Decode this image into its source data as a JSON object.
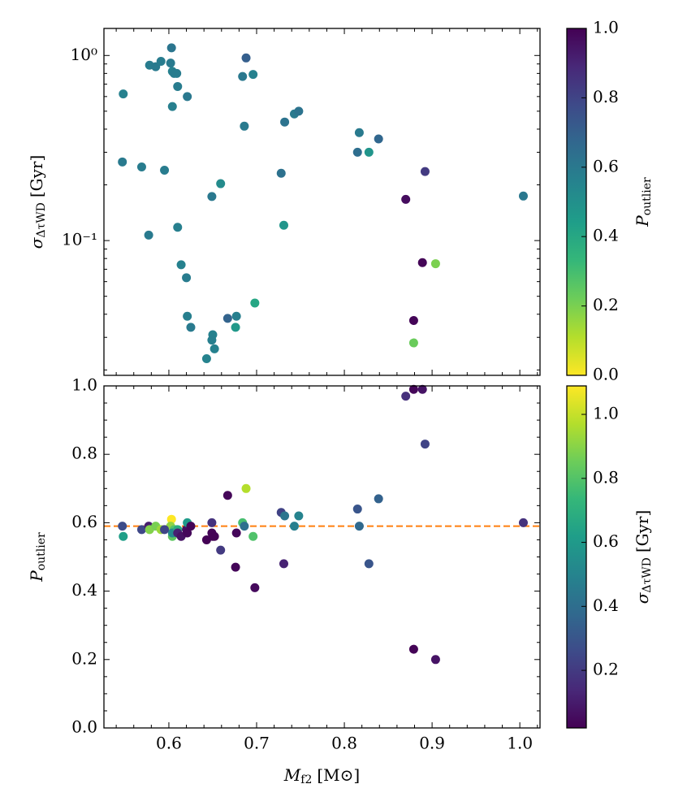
{
  "chart_data": [
    {
      "type": "scatter",
      "ylabel": {
        "symbol": "σ",
        "subscript": "ΔτWD",
        "unit": "[Gyr]"
      },
      "x": [
        0.548,
        0.547,
        0.569,
        0.577,
        0.578,
        0.585,
        0.591,
        0.603,
        0.602,
        0.604,
        0.606,
        0.609,
        0.604,
        0.61,
        0.595,
        0.61,
        0.614,
        0.62,
        0.621,
        0.621,
        0.625,
        0.65,
        0.649,
        0.643,
        0.652,
        0.649,
        0.659,
        0.667,
        0.677,
        0.676,
        0.688,
        0.684,
        0.696,
        0.686,
        0.698,
        0.728,
        0.731,
        0.732,
        0.743,
        0.748,
        0.815,
        0.817,
        0.828,
        0.839,
        0.87,
        0.879,
        0.879,
        0.889,
        0.892,
        0.904,
        1.004
      ],
      "y": [
        0.62,
        0.266,
        0.25,
        0.107,
        0.886,
        0.87,
        0.93,
        1.1,
        0.91,
        0.82,
        0.8,
        0.8,
        0.53,
        0.68,
        0.24,
        0.118,
        0.074,
        0.063,
        0.6,
        0.039,
        0.034,
        0.031,
        0.029,
        0.023,
        0.026,
        0.173,
        0.203,
        0.038,
        0.039,
        0.034,
        0.97,
        0.77,
        0.79,
        0.415,
        0.046,
        0.231,
        0.121,
        0.437,
        0.483,
        0.5,
        0.3,
        0.383,
        0.3,
        0.354,
        0.167,
        0.037,
        0.028,
        0.076,
        0.236,
        0.075,
        0.174
      ],
      "c": [
        0.56,
        0.59,
        0.58,
        0.59,
        0.58,
        0.59,
        0.58,
        0.61,
        0.59,
        0.56,
        0.58,
        0.58,
        0.57,
        0.58,
        0.58,
        0.57,
        0.56,
        0.58,
        0.6,
        0.57,
        0.59,
        0.56,
        0.57,
        0.55,
        0.56,
        0.6,
        0.52,
        0.68,
        0.57,
        0.47,
        0.7,
        0.6,
        0.56,
        0.59,
        0.41,
        0.63,
        0.48,
        0.62,
        0.59,
        0.62,
        0.64,
        0.59,
        0.48,
        0.67,
        0.97,
        0.99,
        0.23,
        0.99,
        0.83,
        0.2,
        0.6
      ],
      "xlim": [
        0.526,
        1.023
      ],
      "xticks": [
        0.6,
        0.7,
        0.8,
        0.9,
        1.0
      ],
      "xminorticks": [
        0.54,
        0.56,
        0.58,
        0.62,
        0.64,
        0.66,
        0.68,
        0.72,
        0.74,
        0.76,
        0.78,
        0.82,
        0.84,
        0.86,
        0.88,
        0.92,
        0.94,
        0.96,
        0.98,
        1.02
      ],
      "xticklabels": false,
      "ylim": [
        0.0187,
        1.4
      ],
      "yscale": "log",
      "yticks": [
        {
          "value": 0.1,
          "label": "10⁻¹"
        },
        {
          "value": 1,
          "label": "10⁰"
        }
      ],
      "yminorticks": [
        0.02,
        0.03,
        0.04,
        0.05,
        0.06,
        0.07,
        0.08,
        0.09,
        0.2,
        0.3,
        0.4,
        0.5,
        0.6,
        0.7,
        0.8,
        0.9
      ],
      "colormap": "viridis_r",
      "colorbar": {
        "label": {
          "symbol": "P",
          "subscript": "outlier"
        },
        "lim": [
          0,
          1
        ],
        "ticks": [
          {
            "value": 0,
            "label": "0.0"
          },
          0.2,
          0.4,
          0.6,
          0.8,
          {
            "value": 1,
            "label": "1.0"
          }
        ]
      }
    },
    {
      "type": "scatter",
      "xlabel": {
        "symbol": "M",
        "subscript": "f2",
        "unit": "[M⊙]"
      },
      "ylabel": {
        "symbol": "P",
        "subscript": "outlier"
      },
      "x": [
        0.548,
        0.547,
        0.569,
        0.577,
        0.578,
        0.585,
        0.591,
        0.603,
        0.602,
        0.604,
        0.606,
        0.609,
        0.604,
        0.61,
        0.595,
        0.61,
        0.614,
        0.62,
        0.621,
        0.621,
        0.625,
        0.65,
        0.649,
        0.643,
        0.652,
        0.649,
        0.659,
        0.667,
        0.677,
        0.676,
        0.688,
        0.684,
        0.696,
        0.686,
        0.698,
        0.728,
        0.731,
        0.732,
        0.743,
        0.748,
        0.815,
        0.817,
        0.828,
        0.839,
        0.87,
        0.879,
        0.879,
        0.889,
        0.892,
        0.904,
        1.004
      ],
      "y": [
        0.56,
        0.59,
        0.58,
        0.59,
        0.58,
        0.59,
        0.58,
        0.61,
        0.59,
        0.56,
        0.58,
        0.58,
        0.57,
        0.58,
        0.58,
        0.57,
        0.56,
        0.58,
        0.6,
        0.57,
        0.59,
        0.56,
        0.57,
        0.55,
        0.56,
        0.6,
        0.52,
        0.68,
        0.57,
        0.47,
        0.7,
        0.6,
        0.56,
        0.59,
        0.41,
        0.63,
        0.48,
        0.62,
        0.59,
        0.62,
        0.64,
        0.59,
        0.48,
        0.67,
        0.97,
        0.99,
        0.23,
        0.99,
        0.83,
        0.2,
        0.6
      ],
      "c": [
        0.62,
        0.266,
        0.25,
        0.107,
        0.886,
        0.87,
        0.93,
        1.1,
        0.91,
        0.82,
        0.8,
        0.8,
        0.53,
        0.68,
        0.24,
        0.118,
        0.074,
        0.063,
        0.6,
        0.039,
        0.034,
        0.031,
        0.029,
        0.023,
        0.026,
        0.173,
        0.203,
        0.038,
        0.039,
        0.034,
        0.97,
        0.77,
        0.79,
        0.415,
        0.046,
        0.231,
        0.121,
        0.437,
        0.483,
        0.5,
        0.3,
        0.383,
        0.3,
        0.354,
        0.167,
        0.037,
        0.028,
        0.076,
        0.236,
        0.075,
        0.174
      ],
      "xlim": [
        0.526,
        1.023
      ],
      "xticks": [
        0.6,
        0.7,
        0.8,
        0.9,
        {
          "value": 1,
          "label": "1.0"
        }
      ],
      "xminorticks": [
        0.54,
        0.56,
        0.58,
        0.62,
        0.64,
        0.66,
        0.68,
        0.72,
        0.74,
        0.76,
        0.78,
        0.82,
        0.84,
        0.86,
        0.88,
        0.92,
        0.94,
        0.96,
        0.98,
        1.02
      ],
      "xticklabels": true,
      "ylim": [
        0,
        1
      ],
      "yscale": "linear",
      "yticks": [
        {
          "value": 0,
          "label": "0.0"
        },
        0.2,
        0.4,
        0.6,
        0.8,
        {
          "value": 1,
          "label": "1.0"
        }
      ],
      "yminorticks": [
        0.05,
        0.1,
        0.15,
        0.25,
        0.3,
        0.35,
        0.45,
        0.5,
        0.55,
        0.65,
        0.7,
        0.75,
        0.85,
        0.9,
        0.95
      ],
      "hline": {
        "value": 0.59,
        "color": "#ff7f0e",
        "style": "dashed"
      },
      "colormap": "viridis",
      "colorbar": {
        "label": {
          "symbol": "σ",
          "subscript": "ΔτWD",
          "unit": "[Gyr]"
        },
        "lim": [
          0.02,
          1.089
        ],
        "ticks": [
          0.2,
          0.4,
          0.6,
          0.8,
          {
            "value": 1,
            "label": "1.0"
          }
        ]
      }
    }
  ]
}
